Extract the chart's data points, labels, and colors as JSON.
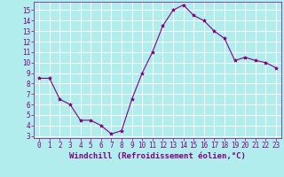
{
  "x": [
    0,
    1,
    2,
    3,
    4,
    5,
    6,
    7,
    8,
    9,
    10,
    11,
    12,
    13,
    14,
    15,
    16,
    17,
    18,
    19,
    20,
    21,
    22,
    23
  ],
  "y": [
    8.5,
    8.5,
    6.5,
    6.0,
    4.5,
    4.5,
    4.0,
    3.2,
    3.5,
    6.5,
    9.0,
    11.0,
    13.5,
    15.0,
    15.5,
    14.5,
    14.0,
    13.0,
    12.3,
    10.2,
    10.5,
    10.2,
    10.0,
    9.5
  ],
  "line_color": "#800080",
  "marker": "*",
  "marker_size": 3,
  "background_color": "#b2eded",
  "grid_color": "#ffffff",
  "xlabel": "Windchill (Refroidissement éolien,°C)",
  "xlim": [
    -0.5,
    23.5
  ],
  "ylim": [
    2.8,
    15.8
  ],
  "yticks": [
    3,
    4,
    5,
    6,
    7,
    8,
    9,
    10,
    11,
    12,
    13,
    14,
    15
  ],
  "xticks": [
    0,
    1,
    2,
    3,
    4,
    5,
    6,
    7,
    8,
    9,
    10,
    11,
    12,
    13,
    14,
    15,
    16,
    17,
    18,
    19,
    20,
    21,
    22,
    23
  ],
  "tick_color": "#800080",
  "label_color": "#800080",
  "label_fontsize": 6.5,
  "tick_fontsize": 5.5
}
